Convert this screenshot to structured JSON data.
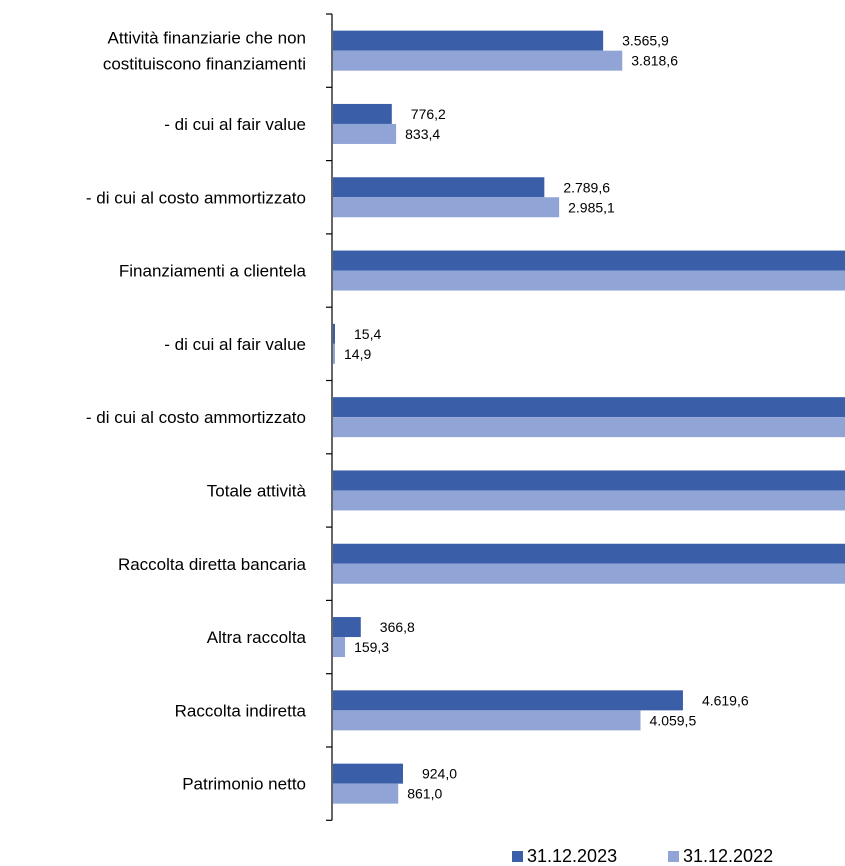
{
  "chart_data": {
    "type": "bar",
    "orientation": "horizontal",
    "categories": [
      [
        "Attività finanziarie che non",
        "costituiscono finanziamenti"
      ],
      [
        "- di cui al fair value"
      ],
      [
        "- di cui al costo ammortizzato"
      ],
      [
        "Finanziamenti a clientela"
      ],
      [
        "- di cui al fair value"
      ],
      [
        "- di cui al costo ammortizzato"
      ],
      [
        "Totale attività"
      ],
      [
        "Raccolta diretta bancaria"
      ],
      [
        "Altra raccolta"
      ],
      [
        "Raccolta indiretta"
      ],
      [
        "Patrimonio netto"
      ]
    ],
    "series": [
      {
        "name": "31.12.2023",
        "color": "#3a5ea8",
        "values": [
          3565.9,
          776.2,
          2789.6,
          6800,
          15.4,
          6800,
          6800,
          6800,
          366.8,
          4619.6,
          924.0
        ],
        "labels": [
          "3.565,9",
          "776,2",
          "2.789,6",
          "",
          "15,4",
          "",
          "",
          "",
          "366,8",
          "4.619,6",
          "924,0"
        ]
      },
      {
        "name": "31.12.2022",
        "color": "#90a5d6",
        "values": [
          3818.6,
          833.4,
          2985.1,
          6800,
          14.9,
          6800,
          6800,
          6800,
          159.3,
          4059.5,
          861.0
        ],
        "labels": [
          "3.818,6",
          "833,4",
          "2.985,1",
          "",
          "14,9",
          "",
          "",
          "",
          "159,3",
          "4.059,5",
          "861,0"
        ]
      }
    ],
    "xlim": [
      0,
      7300
    ],
    "legend_position": "bottom-right",
    "grid": false
  }
}
